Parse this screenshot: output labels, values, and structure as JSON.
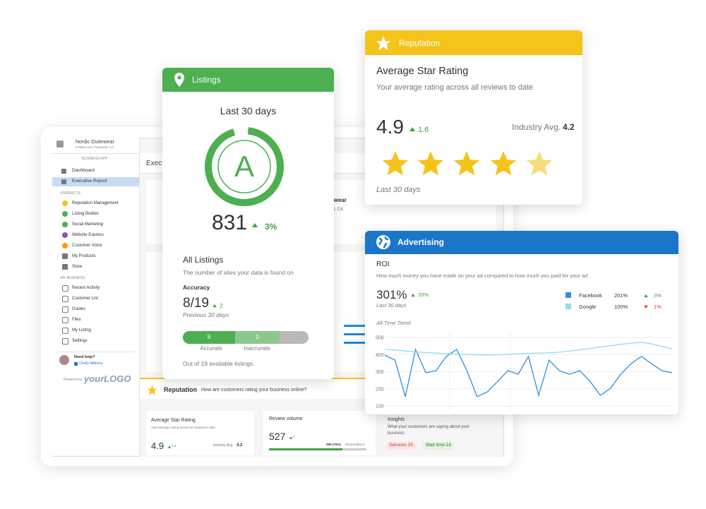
{
  "background_app": {
    "business_name": "Nordic Outerwear",
    "address": "4 Place Ave, Freemont, CA",
    "sidebar": {
      "section_title": "BUSINESS APP",
      "nav": [
        "Dashboard",
        "Executive Report"
      ],
      "products_title": "PRODUCTS",
      "products": [
        "Reputation Management",
        "Listing Builder",
        "Social Marketing",
        "Website Express",
        "Customer Voice",
        "My Products",
        "Store"
      ],
      "my_business_title": "MY BUSINESS",
      "my_business": [
        "Recent Activity",
        "Customer List",
        "Guides",
        "Files",
        "My Listing",
        "Settings"
      ],
      "help_title": "Need help?",
      "help_contact": "Cindy Malone",
      "powered_by": "Powered by",
      "logo": "yourLOGO"
    },
    "page_title": "Executive Report",
    "reputation_section": {
      "title": "Reputation",
      "subtitle": "How are customers rating your business online?",
      "rating_card": {
        "title": "Average Star Rating",
        "description": "Your average rating across all reviews to date",
        "rating": "4.9",
        "change": "1.6",
        "industry_label": "Industry Avg.",
        "industry_value": "4.2"
      },
      "volume_card": {
        "title": "Review volume",
        "value": "527",
        "change": "4",
        "responded_value": "389 (75%)",
        "responded_label": "Responded to"
      },
      "insights_card": {
        "title": "Insights",
        "description": "What your customers are saying about your business",
        "tags": [
          "Services 25",
          "Wait time 14"
        ]
      }
    }
  },
  "listings_card": {
    "title": "Listings",
    "period": "Last 30 days",
    "grade": "A",
    "value": "831",
    "change": "3%",
    "section_title": "All Listings",
    "description": "The number of sites your data is found on",
    "accuracy_title": "Accuracy",
    "accuracy_value": "8/19",
    "accuracy_change": "2",
    "accuracy_period": "Previous 30 days",
    "bar_values": [
      "8",
      "2"
    ],
    "bar_labels": [
      "Accurate",
      "Inaccurate"
    ],
    "footnote": "Out of 19 available listings."
  },
  "reputation_card": {
    "title": "Reputation",
    "heading": "Average Star Rating",
    "description": "Your average rating across all reviews to date",
    "rating": "4.9",
    "change": "1.6",
    "industry_label": "Industry Avg.",
    "industry_value": "4.2",
    "period": "Last 30 days"
  },
  "advertising_card": {
    "title": "Advertising",
    "metric": "ROI",
    "description": "How much money you have made on your ad compared to how much you paid for your ad",
    "value": "301%",
    "change": "20%",
    "period": "Last 30 days",
    "breakdown": [
      {
        "name": "Facebook",
        "value": "201%",
        "change": "3%"
      },
      {
        "name": "Google",
        "value": "100%",
        "change": "1%"
      }
    ]
  },
  "chart_data": {
    "type": "line",
    "title": "All-Time Trend",
    "ylim": [
      100,
      500
    ],
    "yticks": [
      100,
      200,
      300,
      400,
      500
    ],
    "grid": true,
    "series": [
      {
        "color": "#2f8fe0",
        "values": [
          397,
          368,
          154,
          430,
          294,
          306,
          389,
          430,
          306,
          154,
          182,
          244,
          306,
          285,
          389,
          162,
          368,
          306,
          285,
          306,
          244,
          162,
          203,
          285,
          347,
          389,
          347,
          306,
          294
        ]
      },
      {
        "color": "#8fdcec",
        "values": [
          430,
          426,
          421,
          416,
          412,
          409,
          406,
          403,
          401,
          399,
          397,
          399,
          402,
          405,
          407,
          409,
          410,
          414,
          420,
          428,
          436,
          444,
          452,
          460,
          467,
          471,
          463,
          448,
          434
        ]
      }
    ]
  }
}
